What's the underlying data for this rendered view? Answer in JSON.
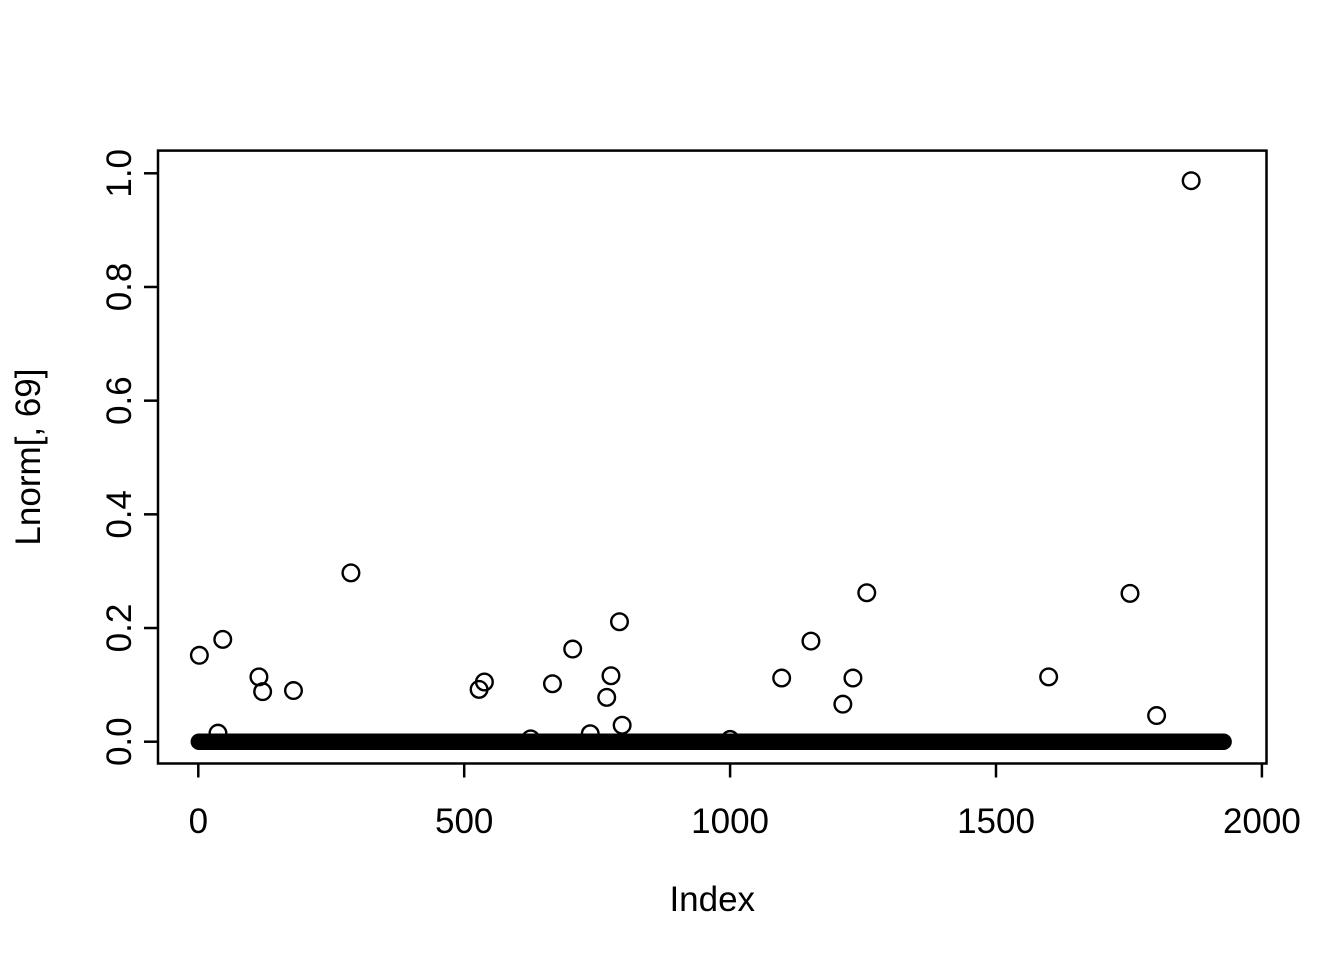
{
  "chart_data": {
    "type": "scatter",
    "title": "",
    "xlabel": "Index",
    "ylabel": "Lnorm[, 69]",
    "x_ticks": [
      0,
      500,
      1000,
      1500,
      2000
    ],
    "x_tick_labels": [
      "0",
      "500",
      "1000",
      "1500",
      "2000"
    ],
    "y_ticks": [
      0.0,
      0.2,
      0.4,
      0.6,
      0.8,
      1.0
    ],
    "y_tick_labels": [
      "0.0",
      "0.2",
      "0.4",
      "0.6",
      "0.8",
      "1.0"
    ],
    "xlim": [
      -77,
      2010
    ],
    "ylim": [
      -0.04,
      1.04
    ],
    "grid": false,
    "legend": null,
    "marker": "open-circle",
    "n_points_total": 1930,
    "baseline_band": {
      "description": "dense run of overlapping points at value ~0 forming a solid black capsule",
      "from_index": 1,
      "to_index": 1928,
      "value": 0.0
    },
    "outliers": [
      [
        2,
        0.152
      ],
      [
        37,
        0.015
      ],
      [
        46,
        0.18
      ],
      [
        114,
        0.114
      ],
      [
        121,
        0.088
      ],
      [
        179,
        0.09
      ],
      [
        287,
        0.297
      ],
      [
        528,
        0.092
      ],
      [
        538,
        0.105
      ],
      [
        625,
        0.005
      ],
      [
        666,
        0.102
      ],
      [
        704,
        0.163
      ],
      [
        737,
        0.014
      ],
      [
        768,
        0.078
      ],
      [
        776,
        0.116
      ],
      [
        792,
        0.211
      ],
      [
        797,
        0.029
      ],
      [
        1000,
        0.004
      ],
      [
        1097,
        0.112
      ],
      [
        1152,
        0.177
      ],
      [
        1212,
        0.066
      ],
      [
        1231,
        0.112
      ],
      [
        1257,
        0.262
      ],
      [
        1599,
        0.114
      ],
      [
        1752,
        0.261
      ],
      [
        1802,
        0.046
      ],
      [
        1867,
        0.987
      ]
    ],
    "colors": {
      "foreground": "#000000",
      "background": "#ffffff"
    }
  }
}
